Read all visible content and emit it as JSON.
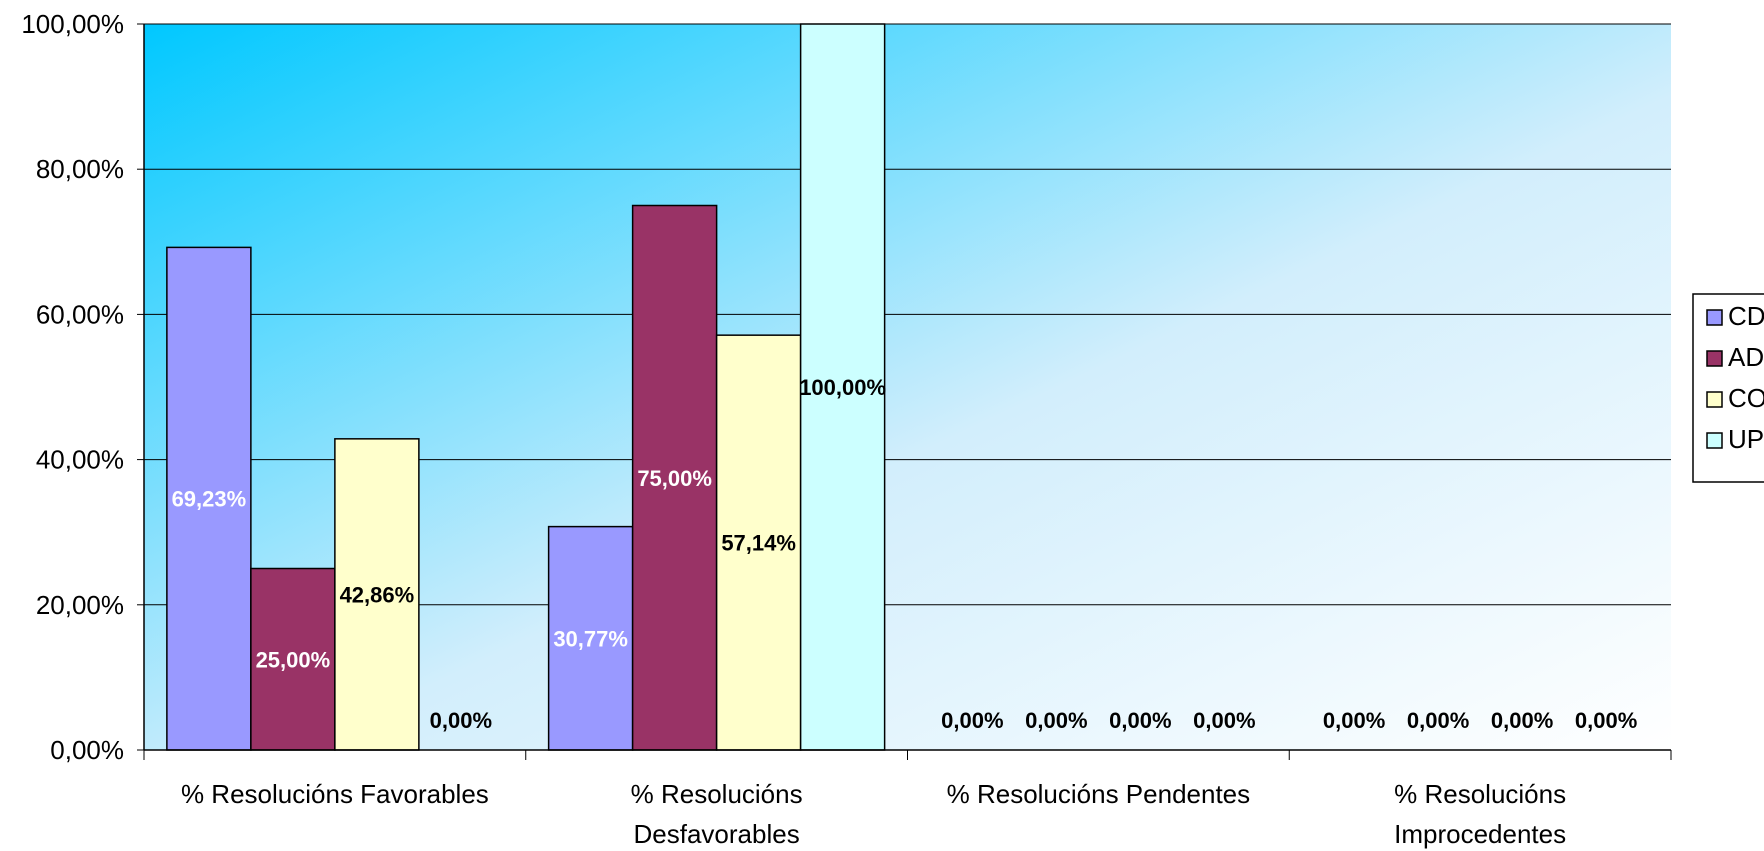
{
  "chart_data": {
    "type": "bar",
    "categories": [
      [
        "% Resolucións Favorables"
      ],
      [
        "% Resolucións",
        "Desfavorables"
      ],
      [
        "% Resolucións Pendentes"
      ],
      [
        "% Resolucións",
        "Improcedentes"
      ]
    ],
    "series": [
      {
        "name": "CD",
        "color": "#9999ff",
        "label_color": "#ffffff",
        "values": [
          69.23,
          30.77,
          0,
          0
        ],
        "labels": [
          "69,23%",
          "30,77%",
          "0,00%",
          "0,00%"
        ]
      },
      {
        "name": "AD",
        "color": "#993366",
        "label_color": "#ffffff",
        "values": [
          25.0,
          75.0,
          0,
          0
        ],
        "labels": [
          "25,00%",
          "75,00%",
          "0,00%",
          "0,00%"
        ]
      },
      {
        "name": "CO",
        "color": "#ffffcc",
        "label_color": "#000000",
        "values": [
          42.86,
          57.14,
          0,
          0
        ],
        "labels": [
          "42,86%",
          "57,14%",
          "0,00%",
          "0,00%"
        ]
      },
      {
        "name": "UP",
        "color": "#ccffff",
        "label_color": "#000000",
        "values": [
          0,
          100.0,
          0,
          0
        ],
        "labels": [
          "0,00%",
          "100,00%",
          "0,00%",
          "0,00%"
        ]
      }
    ],
    "y_ticks": [
      "0,00%",
      "20,00%",
      "40,00%",
      "60,00%",
      "80,00%",
      "100,00%"
    ],
    "ylim": [
      0,
      100
    ],
    "grid": true,
    "legend_position": "right",
    "plot_background": [
      "#00c8ff",
      "#ffffff"
    ]
  }
}
